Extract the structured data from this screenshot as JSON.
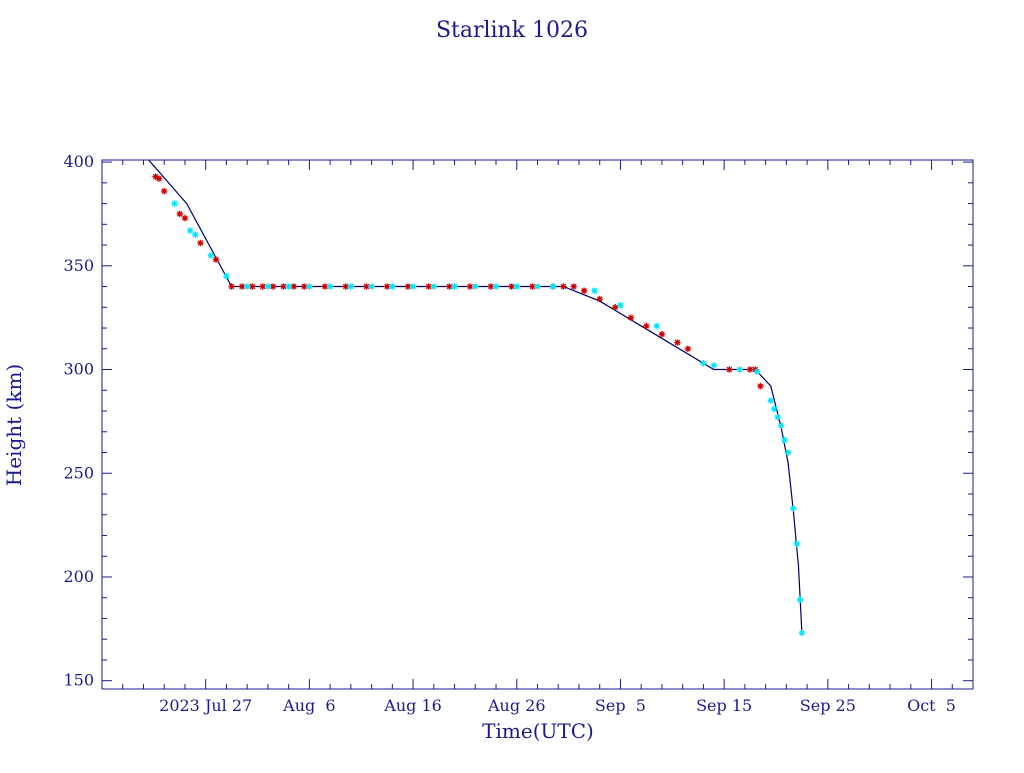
{
  "chart_data": {
    "type": "scatter",
    "title": "Starlink 1026",
    "xlabel": "Time(UTC)",
    "ylabel": "Height (km)",
    "x_ticks": [
      "2023 Jul 27",
      "Aug  6",
      "Aug 16",
      "Aug 26",
      "Sep  5",
      "Sep 15",
      "Sep 25",
      "Oct  5"
    ],
    "x_tick_dates": [
      "2023-07-27",
      "2023-08-06",
      "2023-08-16",
      "2023-08-26",
      "2023-09-05",
      "2023-09-15",
      "2023-09-25",
      "2023-10-05"
    ],
    "xlim": [
      "2023-07-17",
      "2023-10-09"
    ],
    "y_ticks": [
      150,
      200,
      250,
      300,
      350,
      400
    ],
    "ylim": [
      146,
      401
    ],
    "grid": false,
    "colors": {
      "axis": "#1a1a8c",
      "line": "#000066",
      "series_a": "#cc0000",
      "series_b": "#00e5ff"
    },
    "line": {
      "x": [
        "2023-07-21T12:00",
        "2023-07-25T04:00",
        "2023-07-29T12:00",
        "2023-08-30T12:00",
        "2023-09-03T00:00",
        "2023-09-08T00:00",
        "2023-09-14T00:00",
        "2023-09-18T00:00",
        "2023-09-19T12:00",
        "2023-09-20T12:00",
        "2023-09-21T04:00",
        "2023-09-21T16:00",
        "2023-09-22T04:00",
        "2023-09-22T12:00"
      ],
      "y": [
        401,
        380,
        340,
        340,
        333,
        318,
        300,
        300,
        292,
        272,
        255,
        232,
        205,
        173
      ]
    },
    "series": [
      {
        "marker": "asterisk",
        "color": "#cc0000",
        "x": [
          "2023-07-22T04:00",
          "2023-07-22T12:00",
          "2023-07-23T00:00",
          "2023-07-24T12:00",
          "2023-07-25T00:00",
          "2023-07-26T12:00",
          "2023-07-28T00:00",
          "2023-07-29T12:00",
          "2023-07-30T12:00",
          "2023-07-31T12:00",
          "2023-08-01T12:00",
          "2023-08-02T12:00",
          "2023-08-03T12:00",
          "2023-08-04T12:00",
          "2023-08-05T12:00",
          "2023-08-07T12:00",
          "2023-08-09T12:00",
          "2023-08-11T12:00",
          "2023-08-13T12:00",
          "2023-08-15T12:00",
          "2023-08-17T12:00",
          "2023-08-19T12:00",
          "2023-08-21T12:00",
          "2023-08-23T12:00",
          "2023-08-25T12:00",
          "2023-08-27T12:00",
          "2023-08-29T12:00",
          "2023-08-30T12:00",
          "2023-08-31T12:00",
          "2023-09-01T12:00",
          "2023-09-03T00:00",
          "2023-09-04T12:00",
          "2023-09-06T00:00",
          "2023-09-07T12:00",
          "2023-09-09T00:00",
          "2023-09-10T12:00",
          "2023-09-11T12:00",
          "2023-09-15T12:00",
          "2023-09-17T12:00",
          "2023-09-18T00:00",
          "2023-09-18T12:00"
        ],
        "y": [
          393,
          392,
          386,
          375,
          373,
          361,
          353,
          340,
          340,
          340,
          340,
          340,
          340,
          340,
          340,
          340,
          340,
          340,
          340,
          340,
          340,
          340,
          340,
          340,
          340,
          340,
          340,
          340,
          340,
          338,
          334,
          330,
          325,
          321,
          317,
          313,
          310,
          300,
          300,
          300,
          292
        ]
      },
      {
        "marker": "asterisk",
        "color": "#00e5ff",
        "x": [
          "2023-07-24T00:00",
          "2023-07-25T12:00",
          "2023-07-26T00:00",
          "2023-07-27T12:00",
          "2023-07-29T00:00",
          "2023-07-31T00:00",
          "2023-08-02T00:00",
          "2023-08-04T00:00",
          "2023-08-06T00:00",
          "2023-08-08T00:00",
          "2023-08-10T00:00",
          "2023-08-12T00:00",
          "2023-08-14T00:00",
          "2023-08-16T00:00",
          "2023-08-18T00:00",
          "2023-08-20T00:00",
          "2023-08-22T00:00",
          "2023-08-24T00:00",
          "2023-08-26T00:00",
          "2023-08-28T00:00",
          "2023-08-29T12:00",
          "2023-09-02T12:00",
          "2023-09-05T00:00",
          "2023-09-08T12:00",
          "2023-09-13T00:00",
          "2023-09-14T00:00",
          "2023-09-16T12:00",
          "2023-09-18T04:00",
          "2023-09-19T12:00",
          "2023-09-19T20:00",
          "2023-09-20T04:00",
          "2023-09-20T12:00",
          "2023-09-20T20:00",
          "2023-09-21T04:00",
          "2023-09-21T16:00",
          "2023-09-22T00:00",
          "2023-09-22T08:00",
          "2023-09-22T12:00"
        ],
        "y": [
          380,
          367,
          365,
          355,
          345,
          340,
          340,
          340,
          340,
          340,
          340,
          340,
          340,
          340,
          340,
          340,
          340,
          340,
          340,
          340,
          340,
          338,
          331,
          321,
          303,
          302,
          300,
          299,
          285,
          281,
          277,
          273,
          266,
          260,
          233,
          216,
          189,
          173
        ]
      }
    ]
  }
}
